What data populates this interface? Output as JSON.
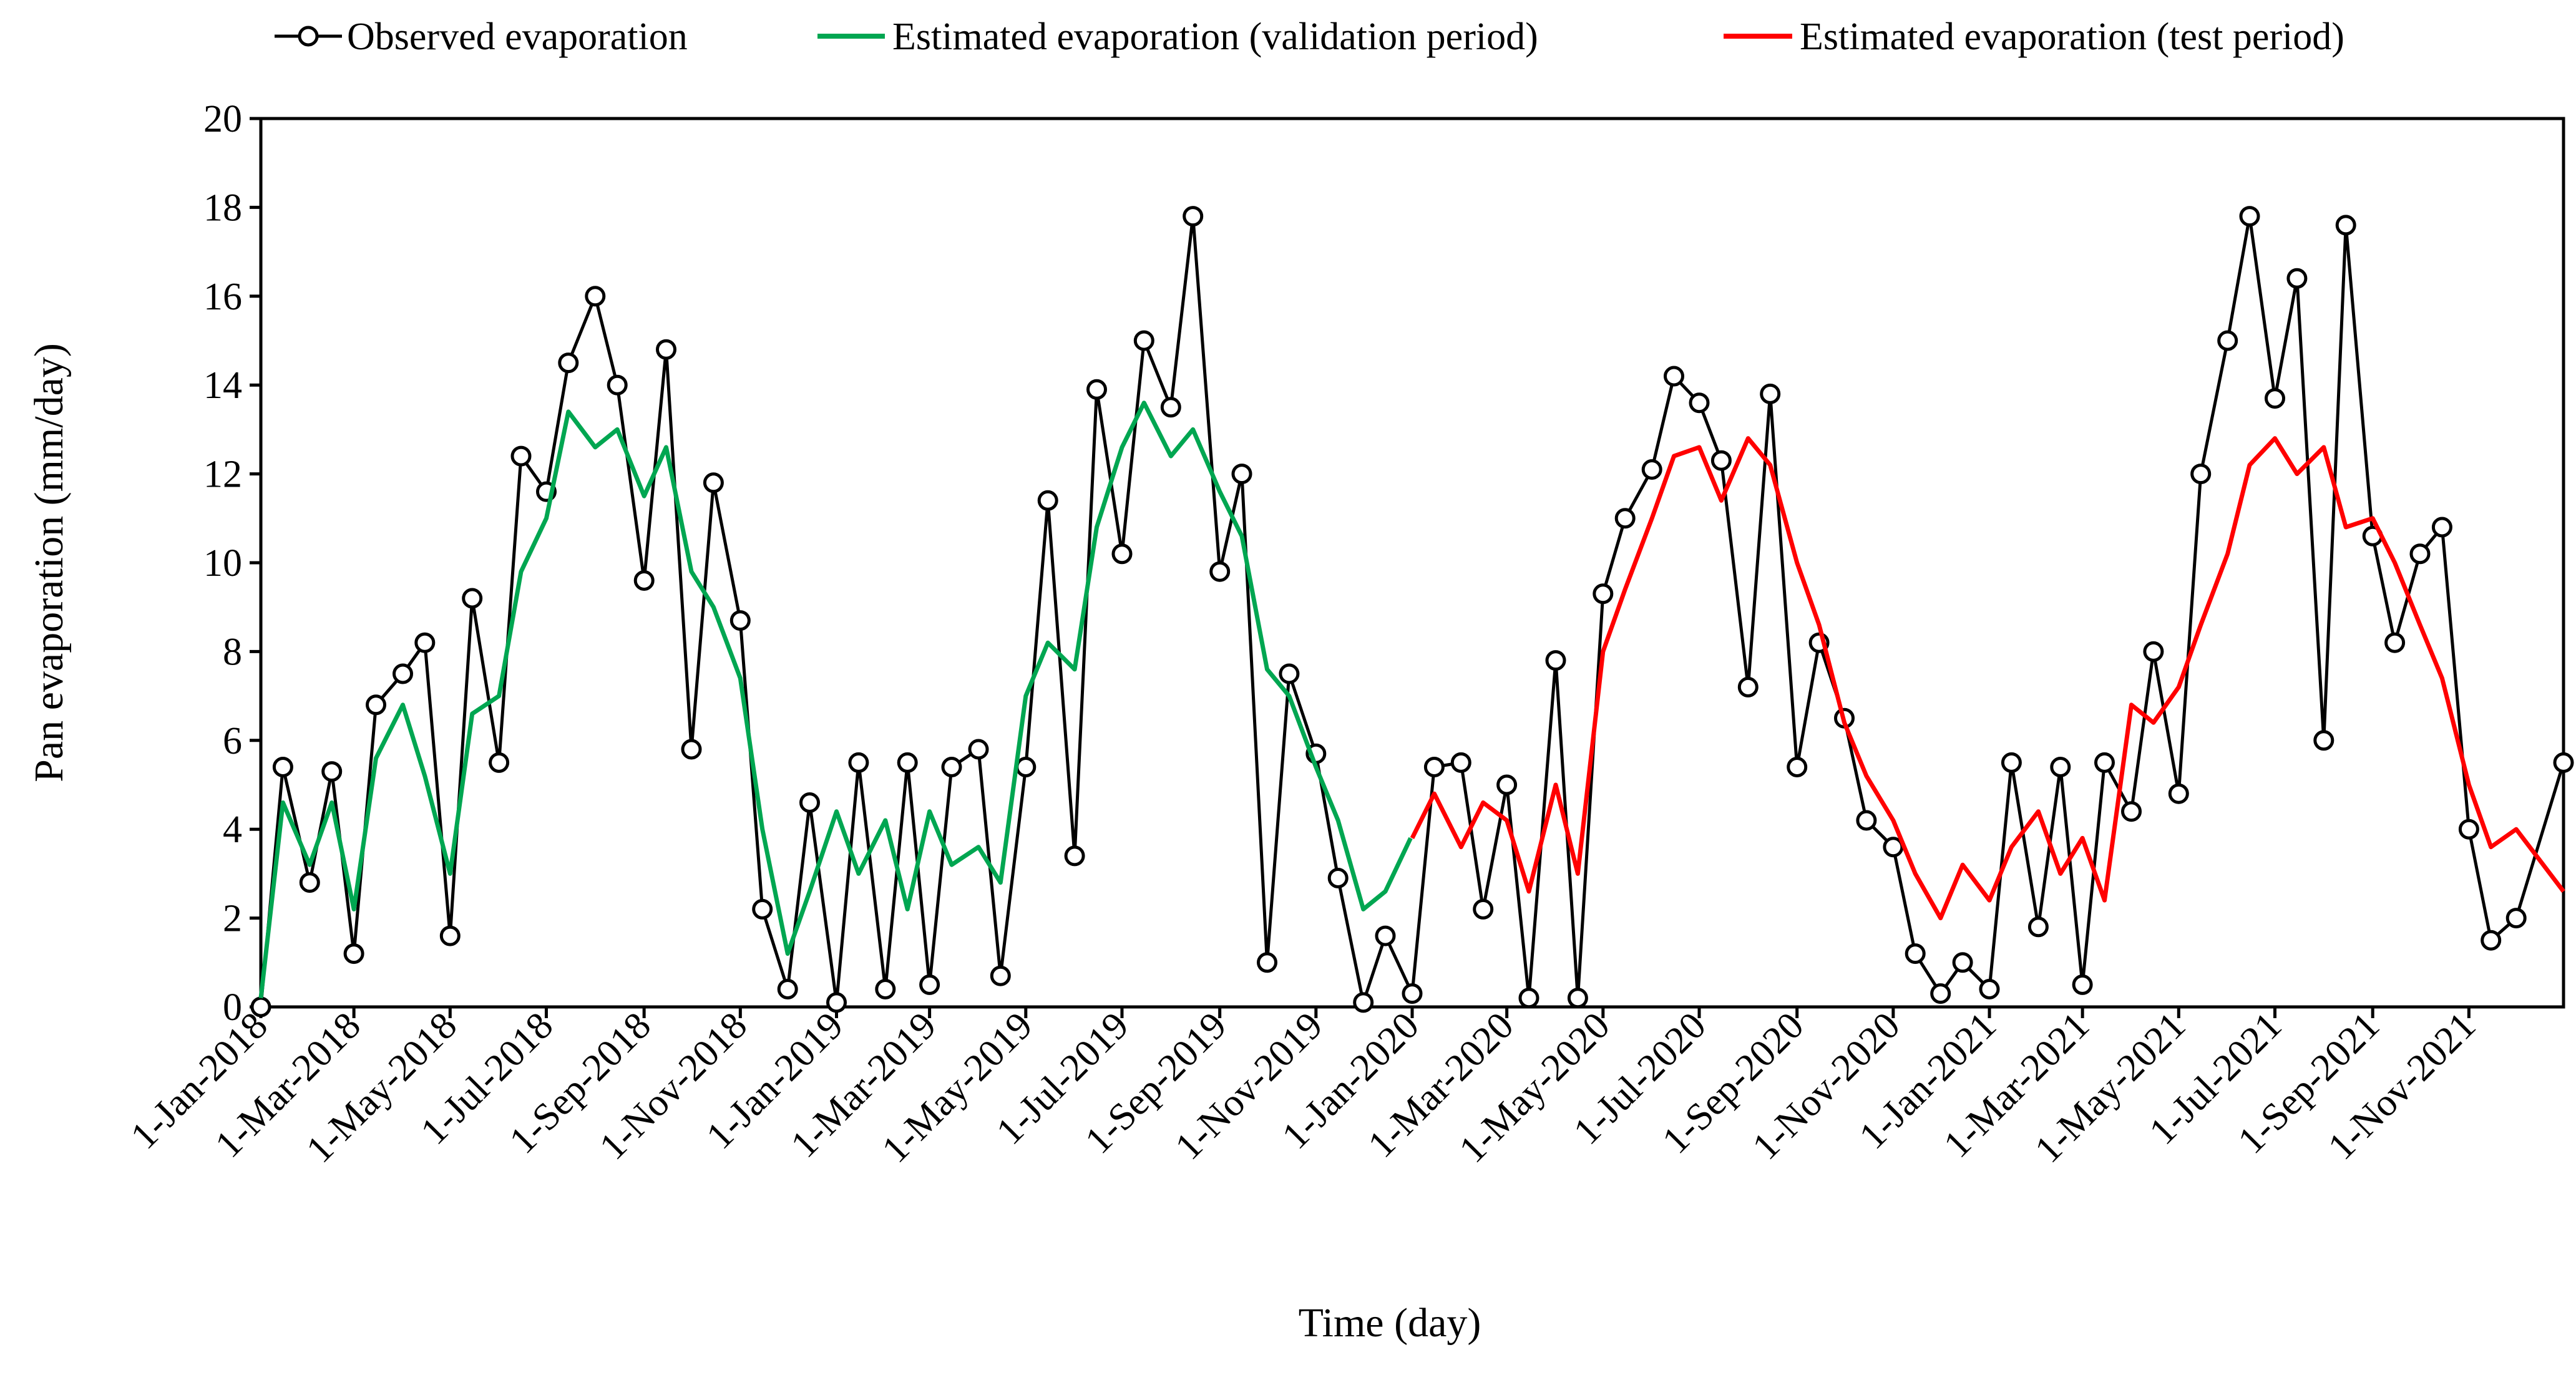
{
  "colors": {
    "observed": "#000000",
    "validation": "#00A651",
    "test": "#FF0000",
    "marker_fill": "#ffffff"
  },
  "chart_data": {
    "type": "line",
    "xlabel": "Time (day)",
    "ylabel": "Pan evaporation  (mm/day)",
    "ylim": [
      0,
      20
    ],
    "yticks": [
      "0",
      "2",
      "4",
      "6",
      "8",
      "10",
      "12",
      "14",
      "16",
      "18",
      "20"
    ],
    "x_start": "2018-01-01",
    "x_end": "2021-12-31",
    "xtick_labels": [
      "1-Jan-2018",
      "1-Mar-2018",
      "1-May-2018",
      "1-Jul-2018",
      "1-Sep-2018",
      "1-Nov-2018",
      "1-Jan-2019",
      "1-Mar-2019",
      "1-May-2019",
      "1-Jul-2019",
      "1-Sep-2019",
      "1-Nov-2019",
      "1-Jan-2020",
      "1-Mar-2020",
      "1-May-2020",
      "1-Jul-2020",
      "1-Sep-2020",
      "1-Nov-2020",
      "1-Jan-2021",
      "1-Mar-2021",
      "1-May-2021",
      "1-Jul-2021",
      "1-Sep-2021",
      "1-Nov-2021"
    ],
    "xtick_dates": [
      "2018-01-01",
      "2018-03-01",
      "2018-05-01",
      "2018-07-01",
      "2018-09-01",
      "2018-11-01",
      "2019-01-01",
      "2019-03-01",
      "2019-05-01",
      "2019-07-01",
      "2019-09-01",
      "2019-11-01",
      "2020-01-01",
      "2020-03-01",
      "2020-05-01",
      "2020-07-01",
      "2020-09-01",
      "2020-11-01",
      "2021-01-01",
      "2021-03-01",
      "2021-05-01",
      "2021-07-01",
      "2021-09-01",
      "2021-11-01"
    ],
    "legend": {
      "position": "top",
      "entries": [
        "Observed evaporation",
        "Estimated evaporation (validation period)",
        "Estimated evaporation (test period)"
      ]
    },
    "series": [
      {
        "name": "Observed evaporation",
        "style": "line-with-open-circles",
        "x": [
          "2018-01-01",
          "2018-01-15",
          "2018-02-01",
          "2018-02-15",
          "2018-03-01",
          "2018-03-15",
          "2018-04-01",
          "2018-04-15",
          "2018-05-01",
          "2018-05-15",
          "2018-06-01",
          "2018-06-15",
          "2018-07-01",
          "2018-07-15",
          "2018-08-01",
          "2018-08-15",
          "2018-09-01",
          "2018-09-15",
          "2018-10-01",
          "2018-10-15",
          "2018-11-01",
          "2018-11-15",
          "2018-12-01",
          "2018-12-15",
          "2019-01-01",
          "2019-01-15",
          "2019-02-01",
          "2019-02-15",
          "2019-03-01",
          "2019-03-15",
          "2019-04-01",
          "2019-04-15",
          "2019-05-01",
          "2019-05-15",
          "2019-06-01",
          "2019-06-15",
          "2019-07-01",
          "2019-07-15",
          "2019-08-01",
          "2019-08-15",
          "2019-09-01",
          "2019-09-15",
          "2019-10-01",
          "2019-10-15",
          "2019-11-01",
          "2019-11-15",
          "2019-12-01",
          "2019-12-15",
          "2020-01-01",
          "2020-01-15",
          "2020-02-01",
          "2020-02-15",
          "2020-03-01",
          "2020-03-15",
          "2020-04-01",
          "2020-04-15",
          "2020-05-01",
          "2020-05-15",
          "2020-06-01",
          "2020-06-15",
          "2020-07-01",
          "2020-07-15",
          "2020-08-01",
          "2020-08-15",
          "2020-09-01",
          "2020-09-15",
          "2020-10-01",
          "2020-10-15",
          "2020-11-01",
          "2020-11-15",
          "2020-12-01",
          "2020-12-15",
          "2021-01-01",
          "2021-01-15",
          "2021-02-01",
          "2021-02-15",
          "2021-03-01",
          "2021-03-15",
          "2021-04-01",
          "2021-04-15",
          "2021-05-01",
          "2021-05-15",
          "2021-06-01",
          "2021-06-15",
          "2021-07-01",
          "2021-07-15",
          "2021-08-01",
          "2021-08-15",
          "2021-09-01",
          "2021-09-15",
          "2021-10-01",
          "2021-10-15",
          "2021-11-01",
          "2021-11-15",
          "2021-12-01",
          "2021-12-31"
        ],
        "y": [
          0.0,
          5.4,
          2.8,
          5.3,
          1.2,
          6.8,
          7.5,
          8.2,
          1.6,
          9.2,
          5.5,
          12.4,
          11.6,
          14.5,
          16.0,
          14.0,
          9.6,
          14.8,
          5.8,
          11.8,
          8.7,
          2.2,
          0.4,
          4.6,
          0.1,
          5.5,
          0.4,
          5.5,
          0.5,
          5.4,
          5.8,
          0.7,
          5.4,
          11.4,
          3.4,
          13.9,
          10.2,
          15.0,
          13.5,
          17.8,
          9.8,
          12.0,
          1.0,
          7.5,
          5.7,
          2.9,
          0.1,
          1.6,
          0.3,
          5.4,
          5.5,
          2.2,
          5.0,
          0.2,
          7.8,
          0.2,
          9.3,
          11.0,
          12.1,
          14.2,
          13.6,
          12.3,
          7.2,
          13.8,
          5.4,
          8.2,
          6.5,
          4.2,
          3.6,
          1.2,
          0.3,
          1.0,
          0.4,
          5.5,
          1.8,
          5.4,
          0.5,
          5.5,
          4.4,
          8.0,
          4.8,
          12.0,
          15.0,
          17.8,
          13.7,
          16.4,
          6.0,
          17.6,
          10.6,
          8.2,
          10.2,
          10.8,
          4.0,
          1.5,
          2.0,
          5.5
        ]
      },
      {
        "name": "Estimated evaporation (validation period)",
        "style": "line",
        "x": [
          "2018-01-01",
          "2018-01-15",
          "2018-02-01",
          "2018-02-15",
          "2018-03-01",
          "2018-03-15",
          "2018-04-01",
          "2018-04-15",
          "2018-05-01",
          "2018-05-15",
          "2018-06-01",
          "2018-06-15",
          "2018-07-01",
          "2018-07-15",
          "2018-08-01",
          "2018-08-15",
          "2018-09-01",
          "2018-09-15",
          "2018-10-01",
          "2018-10-15",
          "2018-11-01",
          "2018-11-15",
          "2018-12-01",
          "2018-12-15",
          "2019-01-01",
          "2019-01-15",
          "2019-02-01",
          "2019-02-15",
          "2019-03-01",
          "2019-03-15",
          "2019-04-01",
          "2019-04-15",
          "2019-05-01",
          "2019-05-15",
          "2019-06-01",
          "2019-06-15",
          "2019-07-01",
          "2019-07-15",
          "2019-08-01",
          "2019-08-15",
          "2019-09-01",
          "2019-09-15",
          "2019-10-01",
          "2019-10-15",
          "2019-11-01",
          "2019-11-15",
          "2019-12-01",
          "2019-12-15",
          "2019-12-31"
        ],
        "y": [
          0.2,
          4.6,
          3.2,
          4.6,
          2.2,
          5.6,
          6.8,
          5.2,
          3.0,
          6.6,
          7.0,
          9.8,
          11.0,
          13.4,
          12.6,
          13.0,
          11.5,
          12.6,
          9.8,
          9.0,
          7.4,
          4.0,
          1.2,
          2.6,
          4.4,
          3.0,
          4.2,
          2.2,
          4.4,
          3.2,
          3.6,
          2.8,
          7.0,
          8.2,
          7.6,
          10.8,
          12.6,
          13.6,
          12.4,
          13.0,
          11.6,
          10.6,
          7.6,
          7.0,
          5.4,
          4.2,
          2.2,
          2.6,
          3.8
        ]
      },
      {
        "name": "Estimated evaporation (test period)",
        "style": "line",
        "x": [
          "2020-01-01",
          "2020-01-15",
          "2020-02-01",
          "2020-02-15",
          "2020-03-01",
          "2020-03-15",
          "2020-04-01",
          "2020-04-15",
          "2020-05-01",
          "2020-05-15",
          "2020-06-01",
          "2020-06-15",
          "2020-07-01",
          "2020-07-15",
          "2020-08-01",
          "2020-08-15",
          "2020-09-01",
          "2020-09-15",
          "2020-10-01",
          "2020-10-15",
          "2020-11-01",
          "2020-11-15",
          "2020-12-01",
          "2020-12-15",
          "2021-01-01",
          "2021-01-15",
          "2021-02-01",
          "2021-02-15",
          "2021-03-01",
          "2021-03-15",
          "2021-04-01",
          "2021-04-15",
          "2021-05-01",
          "2021-05-15",
          "2021-06-01",
          "2021-06-15",
          "2021-07-01",
          "2021-07-15",
          "2021-08-01",
          "2021-08-15",
          "2021-09-01",
          "2021-09-15",
          "2021-10-01",
          "2021-10-15",
          "2021-11-01",
          "2021-11-15",
          "2021-12-01",
          "2021-12-31"
        ],
        "y": [
          3.8,
          4.8,
          3.6,
          4.6,
          4.2,
          2.6,
          5.0,
          3.0,
          8.0,
          9.4,
          11.0,
          12.4,
          12.6,
          11.4,
          12.8,
          12.2,
          10.0,
          8.6,
          6.4,
          5.2,
          4.2,
          3.0,
          2.0,
          3.2,
          2.4,
          3.6,
          4.4,
          3.0,
          3.8,
          2.4,
          6.8,
          6.4,
          7.2,
          8.6,
          10.2,
          12.2,
          12.8,
          12.0,
          12.6,
          10.8,
          11.0,
          10.0,
          8.6,
          7.4,
          5.0,
          3.6,
          4.0,
          2.6
        ]
      }
    ]
  }
}
